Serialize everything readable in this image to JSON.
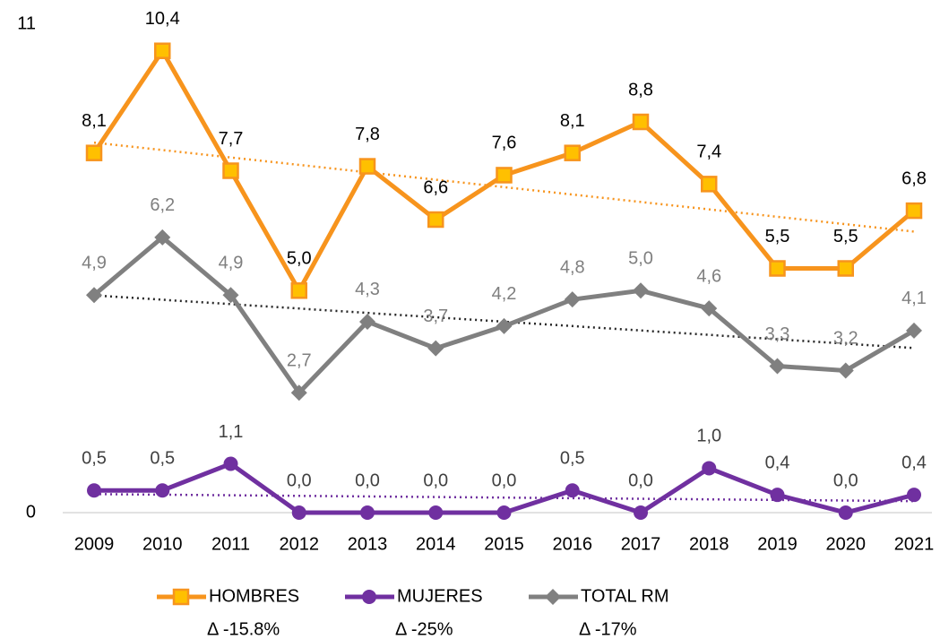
{
  "chart_data": {
    "type": "line",
    "categories": [
      "2009",
      "2010",
      "2011",
      "2012",
      "2013",
      "2014",
      "2015",
      "2016",
      "2017",
      "2018",
      "2019",
      "2020",
      "2021"
    ],
    "ylim": [
      0,
      11
    ],
    "yticks": [
      0,
      11
    ],
    "grid": false,
    "legend": "bottom",
    "series": [
      {
        "name": "HOMBRES",
        "color": "#F7941D",
        "marker": "square",
        "marker_fill": "#FFC000",
        "label_color": "#000000",
        "trendline": true,
        "legend_note": "Δ  -15.8%",
        "values": [
          8.1,
          10.4,
          7.7,
          5.0,
          7.8,
          6.6,
          7.6,
          8.1,
          8.8,
          7.4,
          5.5,
          5.5,
          6.8
        ],
        "value_labels": [
          "8,1",
          "10,4",
          "7,7",
          "5,0",
          "7,8",
          "6,6",
          "7,6",
          "8,1",
          "8,8",
          "7,4",
          "5,5",
          "5,5",
          "6,8"
        ]
      },
      {
        "name": "MUJERES",
        "color": "#7030A0",
        "marker": "circle",
        "marker_fill": "#7030A0",
        "label_color": "#404040",
        "trendline": true,
        "legend_note": "Δ  -25%",
        "values": [
          0.5,
          0.5,
          1.1,
          0.0,
          0.0,
          0.0,
          0.0,
          0.5,
          0.0,
          1.0,
          0.4,
          0.0,
          0.4
        ],
        "value_labels": [
          "0,5",
          "0,5",
          "1,1",
          "0,0",
          "0,0",
          "0,0",
          "0,0",
          "0,5",
          "0,0",
          "1,0",
          "0,4",
          "0,0",
          "0,4"
        ]
      },
      {
        "name": "TOTAL RM",
        "color": "#808080",
        "marker": "diamond",
        "marker_fill": "#808080",
        "label_color": "#7F7F7F",
        "trendline": true,
        "legend_note": "Δ  -17%",
        "values": [
          4.9,
          6.2,
          4.9,
          2.7,
          4.3,
          3.7,
          4.2,
          4.8,
          5.0,
          4.6,
          3.3,
          3.2,
          4.1
        ],
        "value_labels": [
          "4,9",
          "6,2",
          "4,9",
          "2,7",
          "4,3",
          "3,7",
          "4,2",
          "4,8",
          "5,0",
          "4,6",
          "3,3",
          "3,2",
          "4,1"
        ]
      }
    ]
  }
}
